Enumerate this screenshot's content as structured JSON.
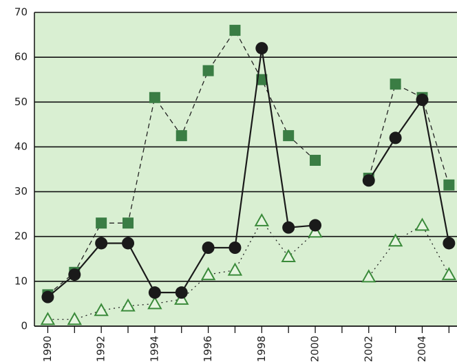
{
  "chart_data": {
    "type": "line",
    "x": [
      1990,
      1991,
      1992,
      1993,
      1994,
      1995,
      1996,
      1997,
      1998,
      1999,
      2000,
      2001,
      2002,
      2003,
      2004,
      2005
    ],
    "series": [
      {
        "color": "#3a7d44",
        "marker": "square",
        "dash": "7,5",
        "values": [
          7,
          12,
          23,
          23,
          51,
          42.5,
          57,
          66,
          55,
          42.5,
          37,
          null,
          33,
          54,
          51,
          31.5
        ]
      },
      {
        "color": "#3a8a3a",
        "marker": "triangle",
        "dash": "2,5",
        "values": [
          1.5,
          1.5,
          3.5,
          4.5,
          5,
          6,
          11.5,
          12.5,
          23.5,
          15.5,
          21,
          null,
          11,
          19,
          22.5,
          11.5
        ]
      },
      {
        "color": "#1a1a1a",
        "marker": "circle",
        "dash": "",
        "values": [
          6.5,
          11.5,
          18.5,
          18.5,
          7.5,
          7.5,
          17.5,
          17.5,
          62,
          22,
          22.5,
          null,
          32.5,
          42,
          50.5,
          18.5
        ]
      }
    ],
    "xlim": [
      1989.5,
      2005.3
    ],
    "xticks": [
      1990,
      1992,
      1994,
      1996,
      1998,
      2000,
      2002,
      2004
    ],
    "xminorticks": [
      1991,
      1993,
      1995,
      1997,
      1999,
      2001,
      2003,
      2005
    ],
    "ylim": [
      0,
      70
    ],
    "yticks": [
      0,
      10,
      20,
      30,
      40,
      50,
      60,
      70
    ],
    "grid": true
  }
}
